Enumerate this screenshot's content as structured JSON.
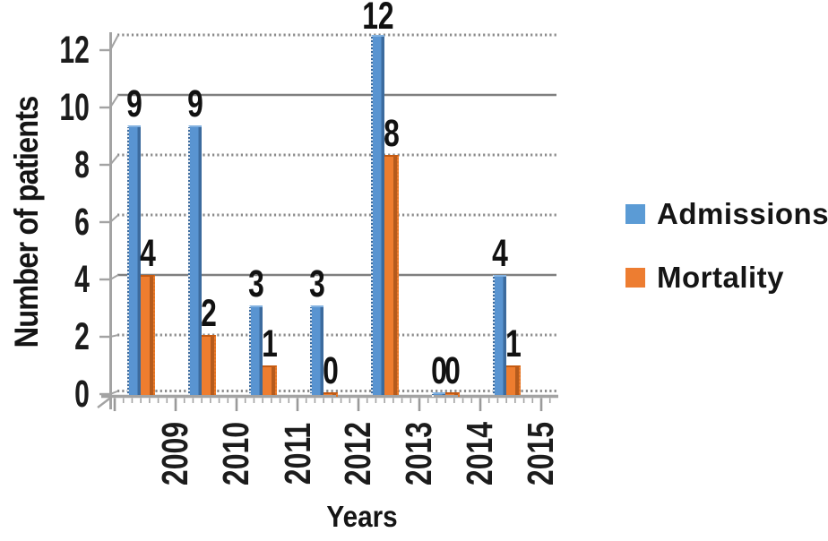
{
  "chart_data": {
    "type": "bar",
    "title": "",
    "xlabel": "Years",
    "ylabel": "Number of patients",
    "categories": [
      "2009",
      "2010",
      "2011",
      "2012",
      "2013",
      "2014",
      "2015"
    ],
    "series": [
      {
        "name": "Admissions",
        "color": "#5B9BD5",
        "values": [
          9,
          9,
          3,
          3,
          12,
          0,
          4
        ]
      },
      {
        "name": "Mortality",
        "color": "#ED7D31",
        "values": [
          4,
          2,
          1,
          0,
          8,
          0,
          1
        ]
      }
    ],
    "data_labels": {
      "Admissions": [
        "9",
        "9",
        "3",
        "3",
        "12",
        "0",
        "4"
      ],
      "Mortality": [
        "4",
        "2",
        "1",
        "0",
        "8",
        "0",
        "1"
      ]
    },
    "ylim": [
      0,
      12
    ],
    "yticks": [
      0,
      2,
      4,
      6,
      8,
      10,
      12
    ],
    "grid": "horizontal",
    "solid_gridlines": [
      4,
      10
    ],
    "dotted_gridlines": [
      0,
      2,
      6,
      8,
      12
    ],
    "legend_position": "right",
    "bar_label_position": "outside-end"
  },
  "legend": {
    "items": [
      {
        "label": "Admissions",
        "color": "#5B9BD5"
      },
      {
        "label": "Mortality",
        "color": "#ED7D31"
      }
    ]
  },
  "style": {
    "axis_color": "#a3a3a3",
    "grid_solid_color": "#7f7f7f",
    "grid_dotted_color": "#8c8c8c",
    "text_color": "#151515",
    "background": "#ffffff"
  }
}
